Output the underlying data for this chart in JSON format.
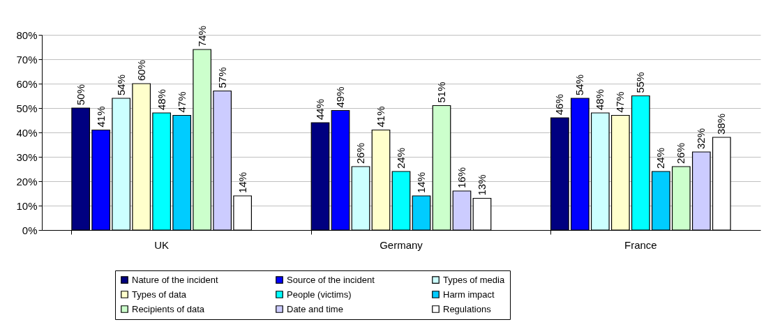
{
  "chart_data": {
    "type": "bar",
    "categories": [
      "UK",
      "Germany",
      "France"
    ],
    "series": [
      {
        "name": "Nature of the incident",
        "color": "#000080",
        "values": [
          50,
          44,
          46
        ],
        "value_labels": [
          "50%",
          "44%",
          "46%"
        ]
      },
      {
        "name": "Source of the incident",
        "color": "#0000ff",
        "values": [
          41,
          49,
          54
        ],
        "value_labels": [
          "41%",
          "49%",
          "54%"
        ]
      },
      {
        "name": "Types of media",
        "color": "#ccffff",
        "values": [
          54,
          26,
          48
        ],
        "value_labels": [
          "54%",
          "26%",
          "48%"
        ]
      },
      {
        "name": "Types of data",
        "color": "#ffffcc",
        "values": [
          60,
          41,
          47
        ],
        "value_labels": [
          "60%",
          "41%",
          "47%"
        ]
      },
      {
        "name": "People (victims)",
        "color": "#00ffff",
        "values": [
          48,
          24,
          55
        ],
        "value_labels": [
          "48%",
          "24%",
          "55%"
        ]
      },
      {
        "name": "Harm impact",
        "color": "#00ccff",
        "values": [
          47,
          14,
          24
        ],
        "value_labels": [
          "47%",
          "14%",
          "24%"
        ]
      },
      {
        "name": "Recipients of data",
        "color": "#ccffcc",
        "values": [
          74,
          51,
          26
        ],
        "value_labels": [
          "74%",
          "51%",
          "26%"
        ]
      },
      {
        "name": "Date and time",
        "color": "#ccccff",
        "values": [
          57,
          16,
          32
        ],
        "value_labels": [
          "57%",
          "16%",
          "32%"
        ]
      },
      {
        "name": "Regulations",
        "color": "#ffffff",
        "values": [
          14,
          13,
          38
        ],
        "value_labels": [
          "14%",
          "13%",
          "38%"
        ]
      }
    ],
    "ylim": [
      0,
      80
    ],
    "yticks": [
      {
        "value": 0,
        "label": "0%"
      },
      {
        "value": 10,
        "label": "10%"
      },
      {
        "value": 20,
        "label": "20%"
      },
      {
        "value": 30,
        "label": "30%"
      },
      {
        "value": 40,
        "label": "40%"
      },
      {
        "value": 50,
        "label": "50%"
      },
      {
        "value": 60,
        "label": "60%"
      },
      {
        "value": 70,
        "label": "70%"
      },
      {
        "value": 80,
        "label": "80%"
      }
    ],
    "grid": "y",
    "legend": "bottom"
  }
}
